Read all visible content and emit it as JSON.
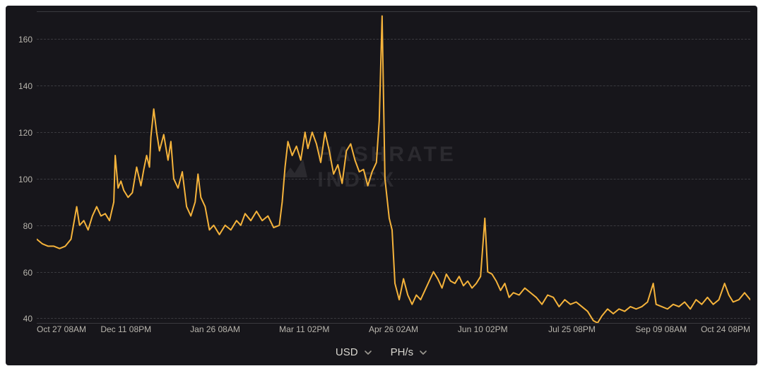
{
  "chart": {
    "type": "line",
    "background_color": "#17161b",
    "grid_color": "#3a3a3f",
    "border_color": "#3a3a3f",
    "text_color": "#b8b5ad",
    "series_color": "#f5b33b",
    "series_line_width": 2.0,
    "watermark": {
      "line1": "HASHRATE",
      "line2": "INDEX",
      "color": "#2b2a2f",
      "fontsize": 30
    },
    "ylim": [
      38,
      172
    ],
    "yticks": [
      40,
      60,
      80,
      100,
      120,
      140,
      160
    ],
    "x_tick_labels": [
      {
        "t": 0.0,
        "label": "Oct 27 08AM"
      },
      {
        "t": 0.125,
        "label": "Dec 11 08PM"
      },
      {
        "t": 0.25,
        "label": "Jan 26 08AM"
      },
      {
        "t": 0.375,
        "label": "Mar 11 02PM"
      },
      {
        "t": 0.5,
        "label": "Apr 26 02AM"
      },
      {
        "t": 0.625,
        "label": "Jun 10 02PM"
      },
      {
        "t": 0.75,
        "label": "Jul 25 08PM"
      },
      {
        "t": 0.875,
        "label": "Sep 09 08AM"
      },
      {
        "t": 1.0,
        "label": "Oct 24 08PM"
      }
    ],
    "series": [
      {
        "t": 0.0,
        "y": 74
      },
      {
        "t": 0.008,
        "y": 72
      },
      {
        "t": 0.016,
        "y": 71
      },
      {
        "t": 0.024,
        "y": 71
      },
      {
        "t": 0.032,
        "y": 70
      },
      {
        "t": 0.04,
        "y": 71
      },
      {
        "t": 0.048,
        "y": 74
      },
      {
        "t": 0.056,
        "y": 88
      },
      {
        "t": 0.06,
        "y": 80
      },
      {
        "t": 0.066,
        "y": 82
      },
      {
        "t": 0.072,
        "y": 78
      },
      {
        "t": 0.078,
        "y": 84
      },
      {
        "t": 0.084,
        "y": 88
      },
      {
        "t": 0.09,
        "y": 84
      },
      {
        "t": 0.096,
        "y": 85
      },
      {
        "t": 0.102,
        "y": 82
      },
      {
        "t": 0.108,
        "y": 90
      },
      {
        "t": 0.11,
        "y": 110
      },
      {
        "t": 0.114,
        "y": 96
      },
      {
        "t": 0.118,
        "y": 99
      },
      {
        "t": 0.122,
        "y": 95
      },
      {
        "t": 0.128,
        "y": 92
      },
      {
        "t": 0.134,
        "y": 94
      },
      {
        "t": 0.14,
        "y": 105
      },
      {
        "t": 0.146,
        "y": 97
      },
      {
        "t": 0.15,
        "y": 104
      },
      {
        "t": 0.154,
        "y": 110
      },
      {
        "t": 0.158,
        "y": 105
      },
      {
        "t": 0.16,
        "y": 118
      },
      {
        "t": 0.164,
        "y": 130
      },
      {
        "t": 0.168,
        "y": 120
      },
      {
        "t": 0.172,
        "y": 112
      },
      {
        "t": 0.178,
        "y": 119
      },
      {
        "t": 0.184,
        "y": 108
      },
      {
        "t": 0.188,
        "y": 116
      },
      {
        "t": 0.192,
        "y": 100
      },
      {
        "t": 0.198,
        "y": 96
      },
      {
        "t": 0.204,
        "y": 103
      },
      {
        "t": 0.21,
        "y": 88
      },
      {
        "t": 0.216,
        "y": 84
      },
      {
        "t": 0.222,
        "y": 90
      },
      {
        "t": 0.226,
        "y": 102
      },
      {
        "t": 0.23,
        "y": 92
      },
      {
        "t": 0.236,
        "y": 88
      },
      {
        "t": 0.242,
        "y": 78
      },
      {
        "t": 0.248,
        "y": 80
      },
      {
        "t": 0.256,
        "y": 76
      },
      {
        "t": 0.264,
        "y": 80
      },
      {
        "t": 0.272,
        "y": 78
      },
      {
        "t": 0.28,
        "y": 82
      },
      {
        "t": 0.286,
        "y": 80
      },
      {
        "t": 0.292,
        "y": 85
      },
      {
        "t": 0.3,
        "y": 82
      },
      {
        "t": 0.308,
        "y": 86
      },
      {
        "t": 0.316,
        "y": 82
      },
      {
        "t": 0.324,
        "y": 84
      },
      {
        "t": 0.332,
        "y": 79
      },
      {
        "t": 0.34,
        "y": 80
      },
      {
        "t": 0.344,
        "y": 90
      },
      {
        "t": 0.348,
        "y": 105
      },
      {
        "t": 0.352,
        "y": 116
      },
      {
        "t": 0.358,
        "y": 110
      },
      {
        "t": 0.364,
        "y": 114
      },
      {
        "t": 0.37,
        "y": 108
      },
      {
        "t": 0.376,
        "y": 120
      },
      {
        "t": 0.38,
        "y": 113
      },
      {
        "t": 0.386,
        "y": 120
      },
      {
        "t": 0.392,
        "y": 115
      },
      {
        "t": 0.398,
        "y": 107
      },
      {
        "t": 0.404,
        "y": 120
      },
      {
        "t": 0.41,
        "y": 112
      },
      {
        "t": 0.416,
        "y": 102
      },
      {
        "t": 0.422,
        "y": 106
      },
      {
        "t": 0.428,
        "y": 98
      },
      {
        "t": 0.434,
        "y": 112
      },
      {
        "t": 0.44,
        "y": 115
      },
      {
        "t": 0.446,
        "y": 108
      },
      {
        "t": 0.452,
        "y": 103
      },
      {
        "t": 0.458,
        "y": 104
      },
      {
        "t": 0.464,
        "y": 97
      },
      {
        "t": 0.47,
        "y": 103
      },
      {
        "t": 0.476,
        "y": 107
      },
      {
        "t": 0.48,
        "y": 125
      },
      {
        "t": 0.484,
        "y": 170
      },
      {
        "t": 0.488,
        "y": 100
      },
      {
        "t": 0.494,
        "y": 83
      },
      {
        "t": 0.498,
        "y": 78
      },
      {
        "t": 0.502,
        "y": 55
      },
      {
        "t": 0.508,
        "y": 48
      },
      {
        "t": 0.514,
        "y": 57
      },
      {
        "t": 0.52,
        "y": 50
      },
      {
        "t": 0.526,
        "y": 46
      },
      {
        "t": 0.532,
        "y": 50
      },
      {
        "t": 0.538,
        "y": 48
      },
      {
        "t": 0.544,
        "y": 52
      },
      {
        "t": 0.55,
        "y": 56
      },
      {
        "t": 0.556,
        "y": 60
      },
      {
        "t": 0.562,
        "y": 57
      },
      {
        "t": 0.568,
        "y": 53
      },
      {
        "t": 0.574,
        "y": 59
      },
      {
        "t": 0.58,
        "y": 56
      },
      {
        "t": 0.586,
        "y": 55
      },
      {
        "t": 0.592,
        "y": 58
      },
      {
        "t": 0.598,
        "y": 54
      },
      {
        "t": 0.604,
        "y": 56
      },
      {
        "t": 0.61,
        "y": 53
      },
      {
        "t": 0.616,
        "y": 55
      },
      {
        "t": 0.622,
        "y": 58
      },
      {
        "t": 0.628,
        "y": 83
      },
      {
        "t": 0.632,
        "y": 60
      },
      {
        "t": 0.638,
        "y": 59
      },
      {
        "t": 0.644,
        "y": 56
      },
      {
        "t": 0.65,
        "y": 52
      },
      {
        "t": 0.656,
        "y": 55
      },
      {
        "t": 0.662,
        "y": 49
      },
      {
        "t": 0.668,
        "y": 51
      },
      {
        "t": 0.676,
        "y": 50
      },
      {
        "t": 0.684,
        "y": 53
      },
      {
        "t": 0.692,
        "y": 51
      },
      {
        "t": 0.7,
        "y": 49
      },
      {
        "t": 0.708,
        "y": 46
      },
      {
        "t": 0.716,
        "y": 50
      },
      {
        "t": 0.724,
        "y": 49
      },
      {
        "t": 0.732,
        "y": 45
      },
      {
        "t": 0.74,
        "y": 48
      },
      {
        "t": 0.748,
        "y": 46
      },
      {
        "t": 0.756,
        "y": 47
      },
      {
        "t": 0.764,
        "y": 45
      },
      {
        "t": 0.772,
        "y": 43
      },
      {
        "t": 0.78,
        "y": 39
      },
      {
        "t": 0.786,
        "y": 38
      },
      {
        "t": 0.792,
        "y": 41
      },
      {
        "t": 0.8,
        "y": 44
      },
      {
        "t": 0.808,
        "y": 42
      },
      {
        "t": 0.816,
        "y": 44
      },
      {
        "t": 0.824,
        "y": 43
      },
      {
        "t": 0.832,
        "y": 45
      },
      {
        "t": 0.84,
        "y": 44
      },
      {
        "t": 0.848,
        "y": 45
      },
      {
        "t": 0.856,
        "y": 47
      },
      {
        "t": 0.864,
        "y": 55
      },
      {
        "t": 0.868,
        "y": 46
      },
      {
        "t": 0.876,
        "y": 45
      },
      {
        "t": 0.884,
        "y": 44
      },
      {
        "t": 0.892,
        "y": 46
      },
      {
        "t": 0.9,
        "y": 45
      },
      {
        "t": 0.908,
        "y": 47
      },
      {
        "t": 0.916,
        "y": 44
      },
      {
        "t": 0.924,
        "y": 48
      },
      {
        "t": 0.932,
        "y": 46
      },
      {
        "t": 0.94,
        "y": 49
      },
      {
        "t": 0.948,
        "y": 46
      },
      {
        "t": 0.956,
        "y": 48
      },
      {
        "t": 0.964,
        "y": 55
      },
      {
        "t": 0.97,
        "y": 50
      },
      {
        "t": 0.976,
        "y": 47
      },
      {
        "t": 0.984,
        "y": 48
      },
      {
        "t": 0.992,
        "y": 51
      },
      {
        "t": 1.0,
        "y": 48
      }
    ]
  },
  "controls": {
    "currency": {
      "label": "USD",
      "options": [
        "USD"
      ]
    },
    "unit": {
      "label": "PH/s",
      "options": [
        "PH/s"
      ]
    }
  }
}
